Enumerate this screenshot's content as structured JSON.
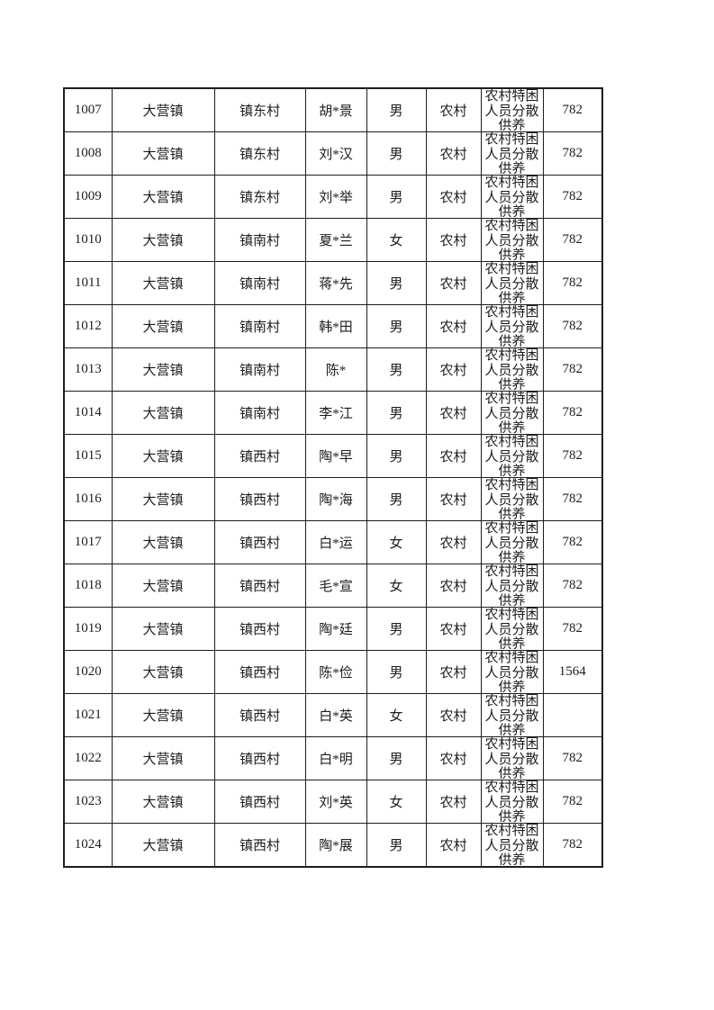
{
  "colors": {
    "background": "#ffffff",
    "text": "#1d1d1d",
    "border": "#1d1d1d"
  },
  "table": {
    "rows": [
      [
        "1007",
        "大营镇",
        "镇东村",
        "胡*景",
        "男",
        "农村",
        "农村特困人员分散供养",
        "782"
      ],
      [
        "1008",
        "大营镇",
        "镇东村",
        "刘*汉",
        "男",
        "农村",
        "农村特困人员分散供养",
        "782"
      ],
      [
        "1009",
        "大营镇",
        "镇东村",
        "刘*举",
        "男",
        "农村",
        "农村特困人员分散供养",
        "782"
      ],
      [
        "1010",
        "大营镇",
        "镇南村",
        "夏*兰",
        "女",
        "农村",
        "农村特困人员分散供养",
        "782"
      ],
      [
        "1011",
        "大营镇",
        "镇南村",
        "蒋*先",
        "男",
        "农村",
        "农村特困人员分散供养",
        "782"
      ],
      [
        "1012",
        "大营镇",
        "镇南村",
        "韩*田",
        "男",
        "农村",
        "农村特困人员分散供养",
        "782"
      ],
      [
        "1013",
        "大营镇",
        "镇南村",
        "陈*",
        "男",
        "农村",
        "农村特困人员分散供养",
        "782"
      ],
      [
        "1014",
        "大营镇",
        "镇南村",
        "李*江",
        "男",
        "农村",
        "农村特困人员分散供养",
        "782"
      ],
      [
        "1015",
        "大营镇",
        "镇西村",
        "陶*早",
        "男",
        "农村",
        "农村特困人员分散供养",
        "782"
      ],
      [
        "1016",
        "大营镇",
        "镇西村",
        "陶*海",
        "男",
        "农村",
        "农村特困人员分散供养",
        "782"
      ],
      [
        "1017",
        "大营镇",
        "镇西村",
        "白*运",
        "女",
        "农村",
        "农村特困人员分散供养",
        "782"
      ],
      [
        "1018",
        "大营镇",
        "镇西村",
        "毛*宣",
        "女",
        "农村",
        "农村特困人员分散供养",
        "782"
      ],
      [
        "1019",
        "大营镇",
        "镇西村",
        "陶*廷",
        "男",
        "农村",
        "农村特困人员分散供养",
        "782"
      ],
      [
        "1020",
        "大营镇",
        "镇西村",
        "陈*俭",
        "男",
        "农村",
        "农村特困人员分散供养",
        "1564"
      ],
      [
        "1021",
        "大营镇",
        "镇西村",
        "白*英",
        "女",
        "农村",
        "农村特困人员分散供养",
        ""
      ],
      [
        "1022",
        "大营镇",
        "镇西村",
        "白*明",
        "男",
        "农村",
        "农村特困人员分散供养",
        "782"
      ],
      [
        "1023",
        "大营镇",
        "镇西村",
        "刘*英",
        "女",
        "农村",
        "农村特困人员分散供养",
        "782"
      ],
      [
        "1024",
        "大营镇",
        "镇西村",
        "陶*展",
        "男",
        "农村",
        "农村特困人员分散供养",
        "782"
      ]
    ]
  }
}
